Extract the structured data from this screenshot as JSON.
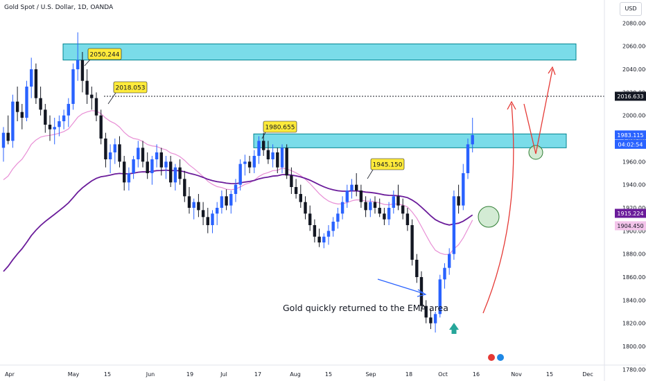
{
  "header": {
    "title": "Gold Spot / U.S. Dollar, 1D, OANDA",
    "currency": "USD"
  },
  "chart_data": {
    "type": "candlestick",
    "ylim": [
      1770,
      2100
    ],
    "y_ticks": [
      1780,
      1800,
      1820,
      1840,
      1860,
      1880,
      1900,
      1920,
      1940,
      1960,
      1980,
      2000,
      2020,
      2040,
      2060,
      2080
    ],
    "x_ticks": [
      "Apr",
      "May",
      "15",
      "Jun",
      "19",
      "Jul",
      "17",
      "Aug",
      "15",
      "Sep",
      "18",
      "Oct",
      "16",
      "Nov",
      "15",
      "Dec"
    ],
    "colors": {
      "up": "#2962ff",
      "down": "#131722",
      "ema_fast": "#e88ed5",
      "ema_slow": "#6a1b9a",
      "zone": "#4dd0e1",
      "arrow": "#e53935",
      "callout": "#ffeb3b"
    },
    "candles": [
      {
        "o": 1972,
        "h": 1990,
        "l": 1960,
        "c": 1985
      },
      {
        "o": 1985,
        "h": 2000,
        "l": 1975,
        "c": 1978
      },
      {
        "o": 1978,
        "h": 2018,
        "l": 1972,
        "c": 2012
      },
      {
        "o": 2012,
        "h": 2025,
        "l": 1995,
        "c": 2003
      },
      {
        "o": 2003,
        "h": 2010,
        "l": 1988,
        "c": 1998
      },
      {
        "o": 1998,
        "h": 2030,
        "l": 1995,
        "c": 2025
      },
      {
        "o": 2025,
        "h": 2050,
        "l": 2015,
        "c": 2040
      },
      {
        "o": 2040,
        "h": 2045,
        "l": 2010,
        "c": 2015
      },
      {
        "o": 2015,
        "h": 2025,
        "l": 2000,
        "c": 2005
      },
      {
        "o": 2005,
        "h": 2010,
        "l": 1985,
        "c": 1992
      },
      {
        "o": 1992,
        "h": 2000,
        "l": 1978,
        "c": 1988
      },
      {
        "o": 1988,
        "h": 1998,
        "l": 1975,
        "c": 1990
      },
      {
        "o": 1990,
        "h": 2000,
        "l": 1982,
        "c": 1995
      },
      {
        "o": 1995,
        "h": 2005,
        "l": 1988,
        "c": 2000
      },
      {
        "o": 2000,
        "h": 2015,
        "l": 1990,
        "c": 2010
      },
      {
        "o": 2010,
        "h": 2045,
        "l": 2005,
        "c": 2040
      },
      {
        "o": 2040,
        "h": 2072,
        "l": 2030,
        "c": 2048
      },
      {
        "o": 2048,
        "h": 2055,
        "l": 2020,
        "c": 2030
      },
      {
        "o": 2030,
        "h": 2040,
        "l": 2010,
        "c": 2018
      },
      {
        "o": 2018,
        "h": 2025,
        "l": 2005,
        "c": 2015
      },
      {
        "o": 2015,
        "h": 2020,
        "l": 1995,
        "c": 2000
      },
      {
        "o": 2000,
        "h": 2005,
        "l": 1975,
        "c": 1980
      },
      {
        "o": 1980,
        "h": 1985,
        "l": 1955,
        "c": 1962
      },
      {
        "o": 1962,
        "h": 1975,
        "l": 1950,
        "c": 1968
      },
      {
        "o": 1968,
        "h": 1980,
        "l": 1958,
        "c": 1975
      },
      {
        "o": 1975,
        "h": 1982,
        "l": 1955,
        "c": 1960
      },
      {
        "o": 1960,
        "h": 1965,
        "l": 1935,
        "c": 1942
      },
      {
        "o": 1942,
        "h": 1955,
        "l": 1935,
        "c": 1950
      },
      {
        "o": 1950,
        "h": 1965,
        "l": 1945,
        "c": 1962
      },
      {
        "o": 1962,
        "h": 1978,
        "l": 1955,
        "c": 1972
      },
      {
        "o": 1972,
        "h": 1978,
        "l": 1955,
        "c": 1960
      },
      {
        "o": 1960,
        "h": 1968,
        "l": 1945,
        "c": 1950
      },
      {
        "o": 1950,
        "h": 1965,
        "l": 1940,
        "c": 1962
      },
      {
        "o": 1962,
        "h": 1975,
        "l": 1955,
        "c": 1968
      },
      {
        "o": 1968,
        "h": 1972,
        "l": 1948,
        "c": 1955
      },
      {
        "o": 1955,
        "h": 1965,
        "l": 1945,
        "c": 1960
      },
      {
        "o": 1960,
        "h": 1965,
        "l": 1938,
        "c": 1942
      },
      {
        "o": 1942,
        "h": 1958,
        "l": 1935,
        "c": 1955
      },
      {
        "o": 1955,
        "h": 1962,
        "l": 1940,
        "c": 1945
      },
      {
        "o": 1945,
        "h": 1952,
        "l": 1925,
        "c": 1930
      },
      {
        "o": 1930,
        "h": 1938,
        "l": 1915,
        "c": 1920
      },
      {
        "o": 1920,
        "h": 1928,
        "l": 1910,
        "c": 1925
      },
      {
        "o": 1925,
        "h": 1932,
        "l": 1912,
        "c": 1918
      },
      {
        "o": 1918,
        "h": 1925,
        "l": 1905,
        "c": 1912
      },
      {
        "o": 1912,
        "h": 1920,
        "l": 1898,
        "c": 1905
      },
      {
        "o": 1905,
        "h": 1918,
        "l": 1898,
        "c": 1915
      },
      {
        "o": 1915,
        "h": 1925,
        "l": 1905,
        "c": 1920
      },
      {
        "o": 1920,
        "h": 1935,
        "l": 1915,
        "c": 1930
      },
      {
        "o": 1930,
        "h": 1936,
        "l": 1918,
        "c": 1922
      },
      {
        "o": 1922,
        "h": 1935,
        "l": 1915,
        "c": 1932
      },
      {
        "o": 1932,
        "h": 1945,
        "l": 1925,
        "c": 1940
      },
      {
        "o": 1940,
        "h": 1962,
        "l": 1935,
        "c": 1958
      },
      {
        "o": 1958,
        "h": 1966,
        "l": 1948,
        "c": 1960
      },
      {
        "o": 1960,
        "h": 1965,
        "l": 1950,
        "c": 1955
      },
      {
        "o": 1955,
        "h": 1970,
        "l": 1950,
        "c": 1965
      },
      {
        "o": 1965,
        "h": 1982,
        "l": 1958,
        "c": 1978
      },
      {
        "o": 1978,
        "h": 1985,
        "l": 1965,
        "c": 1970
      },
      {
        "o": 1970,
        "h": 1978,
        "l": 1958,
        "c": 1962
      },
      {
        "o": 1962,
        "h": 1975,
        "l": 1955,
        "c": 1968
      },
      {
        "o": 1968,
        "h": 1972,
        "l": 1950,
        "c": 1955
      },
      {
        "o": 1955,
        "h": 1975,
        "l": 1950,
        "c": 1972
      },
      {
        "o": 1972,
        "h": 1975,
        "l": 1945,
        "c": 1948
      },
      {
        "o": 1948,
        "h": 1955,
        "l": 1932,
        "c": 1938
      },
      {
        "o": 1938,
        "h": 1945,
        "l": 1928,
        "c": 1932
      },
      {
        "o": 1932,
        "h": 1940,
        "l": 1920,
        "c": 1925
      },
      {
        "o": 1925,
        "h": 1930,
        "l": 1910,
        "c": 1915
      },
      {
        "o": 1915,
        "h": 1922,
        "l": 1900,
        "c": 1905
      },
      {
        "o": 1905,
        "h": 1910,
        "l": 1890,
        "c": 1895
      },
      {
        "o": 1895,
        "h": 1902,
        "l": 1886,
        "c": 1890
      },
      {
        "o": 1890,
        "h": 1898,
        "l": 1885,
        "c": 1895
      },
      {
        "o": 1895,
        "h": 1905,
        "l": 1888,
        "c": 1900
      },
      {
        "o": 1900,
        "h": 1912,
        "l": 1895,
        "c": 1908
      },
      {
        "o": 1908,
        "h": 1920,
        "l": 1902,
        "c": 1915
      },
      {
        "o": 1915,
        "h": 1930,
        "l": 1910,
        "c": 1925
      },
      {
        "o": 1925,
        "h": 1940,
        "l": 1920,
        "c": 1935
      },
      {
        "o": 1935,
        "h": 1945,
        "l": 1928,
        "c": 1940
      },
      {
        "o": 1940,
        "h": 1950,
        "l": 1930,
        "c": 1935
      },
      {
        "o": 1935,
        "h": 1940,
        "l": 1920,
        "c": 1925
      },
      {
        "o": 1925,
        "h": 1930,
        "l": 1912,
        "c": 1918
      },
      {
        "o": 1918,
        "h": 1928,
        "l": 1912,
        "c": 1925
      },
      {
        "o": 1925,
        "h": 1930,
        "l": 1915,
        "c": 1920
      },
      {
        "o": 1920,
        "h": 1928,
        "l": 1912,
        "c": 1915
      },
      {
        "o": 1915,
        "h": 1920,
        "l": 1905,
        "c": 1910
      },
      {
        "o": 1910,
        "h": 1925,
        "l": 1905,
        "c": 1920
      },
      {
        "o": 1920,
        "h": 1935,
        "l": 1915,
        "c": 1930
      },
      {
        "o": 1930,
        "h": 1940,
        "l": 1918,
        "c": 1922
      },
      {
        "o": 1922,
        "h": 1928,
        "l": 1910,
        "c": 1915
      },
      {
        "o": 1915,
        "h": 1920,
        "l": 1900,
        "c": 1905
      },
      {
        "o": 1905,
        "h": 1910,
        "l": 1870,
        "c": 1875
      },
      {
        "o": 1875,
        "h": 1880,
        "l": 1855,
        "c": 1860
      },
      {
        "o": 1860,
        "h": 1865,
        "l": 1830,
        "c": 1835
      },
      {
        "o": 1835,
        "h": 1840,
        "l": 1820,
        "c": 1825
      },
      {
        "o": 1825,
        "h": 1832,
        "l": 1815,
        "c": 1820
      },
      {
        "o": 1820,
        "h": 1830,
        "l": 1812,
        "c": 1828
      },
      {
        "o": 1828,
        "h": 1862,
        "l": 1825,
        "c": 1858
      },
      {
        "o": 1858,
        "h": 1872,
        "l": 1850,
        "c": 1868
      },
      {
        "o": 1868,
        "h": 1885,
        "l": 1862,
        "c": 1880
      },
      {
        "o": 1880,
        "h": 1935,
        "l": 1875,
        "c": 1930
      },
      {
        "o": 1930,
        "h": 1940,
        "l": 1915,
        "c": 1922
      },
      {
        "o": 1922,
        "h": 1958,
        "l": 1918,
        "c": 1950
      },
      {
        "o": 1950,
        "h": 1980,
        "l": 1945,
        "c": 1975
      },
      {
        "o": 1975,
        "h": 1998,
        "l": 1968,
        "c": 1983
      }
    ],
    "zones": [
      {
        "label": "upper-resistance-zone",
        "y_low": 2048,
        "y_high": 2062
      },
      {
        "label": "middle-resistance-zone",
        "y_low": 1972,
        "y_high": 1984
      }
    ],
    "dotted_level": 2016.633,
    "callouts": [
      {
        "text": "2050.244",
        "value": 2050.244
      },
      {
        "text": "2018.053",
        "value": 2018.053
      },
      {
        "text": "1980.655",
        "value": 1980.655
      },
      {
        "text": "1945.150",
        "value": 1945.15
      }
    ],
    "annotation": "Gold quickly returned to the EMA area",
    "price_badges": [
      {
        "text": "2016.633",
        "value": 2016.633,
        "style": "dark"
      },
      {
        "text": "1983.115",
        "value": 1983.115,
        "style": "blue"
      },
      {
        "text": "04:02:54",
        "value": 1975,
        "style": "blue-sub"
      },
      {
        "text": "1915.224",
        "value": 1915.224,
        "style": "purple"
      },
      {
        "text": "1904.450",
        "value": 1904.45,
        "style": "pink"
      }
    ]
  }
}
